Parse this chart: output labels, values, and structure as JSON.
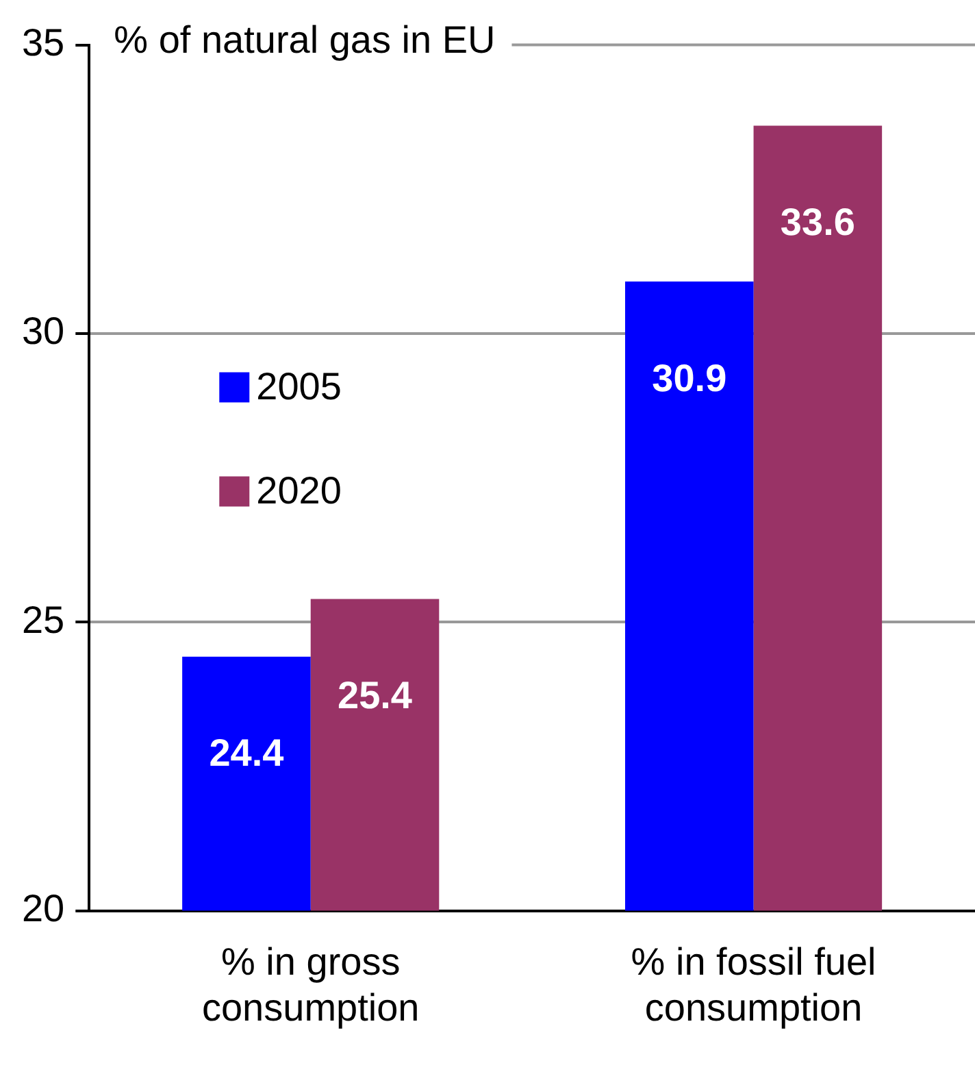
{
  "chart_data": {
    "type": "bar",
    "title": "% of natural gas in EU",
    "categories": [
      "% in gross consumption",
      "% in fossil fuel consumption"
    ],
    "series": [
      {
        "name": "2005",
        "color": "#0000ff",
        "values": [
          24.4,
          30.9
        ]
      },
      {
        "name": "2020",
        "color": "#993366",
        "values": [
          25.4,
          33.6
        ]
      }
    ],
    "ylim": [
      20,
      35
    ],
    "yticks": [
      20,
      25,
      30,
      35
    ],
    "grid": "y",
    "legend": "left",
    "data_labels": true
  }
}
